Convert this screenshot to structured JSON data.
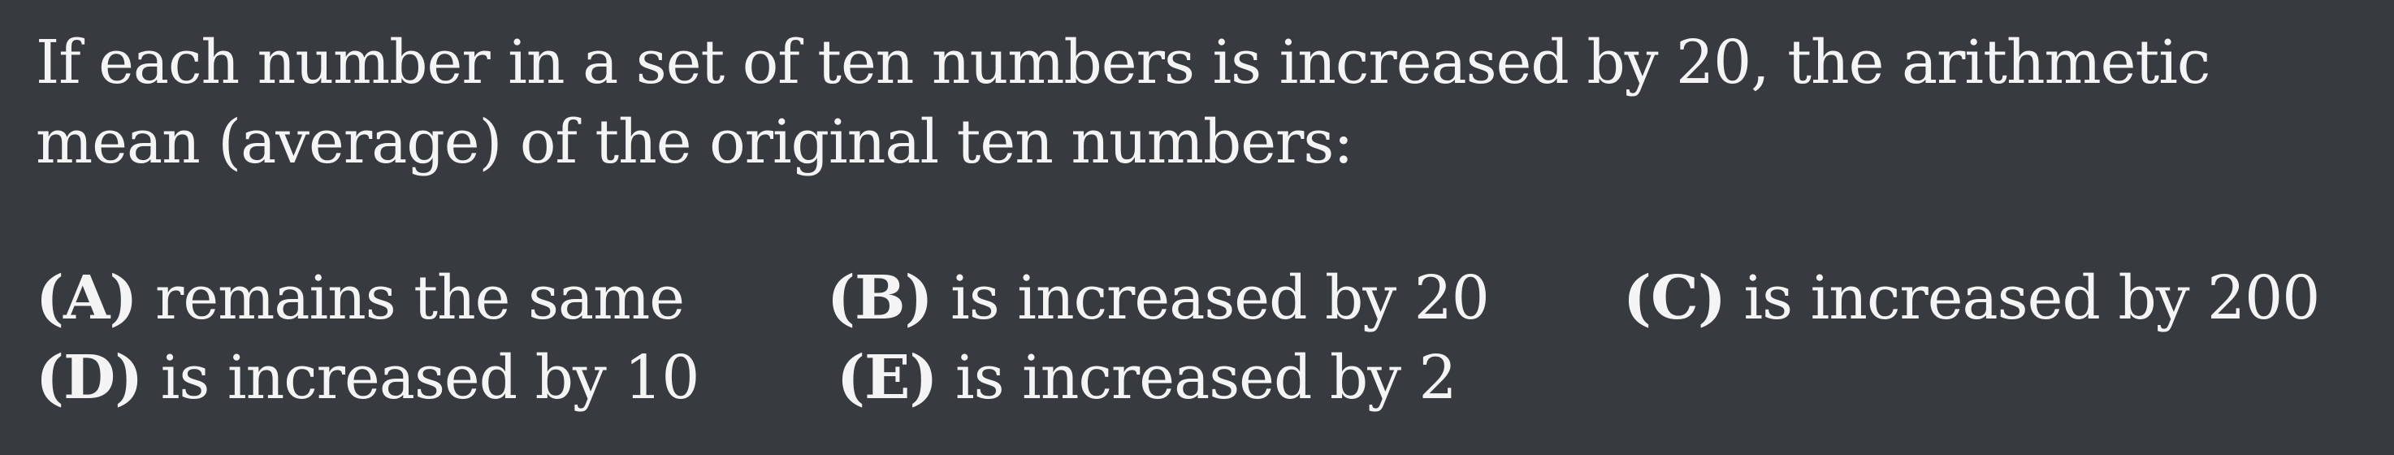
{
  "question": {
    "text": "If each number in a set of ten numbers is increased by 20, the arithmetic mean (average) of the original ten numbers:"
  },
  "choices": [
    {
      "label": "(A)",
      "text": "remains the same"
    },
    {
      "label": "(B)",
      "text": "is increased by 20"
    },
    {
      "label": "(C)",
      "text": "is increased by 200"
    },
    {
      "label": "(D)",
      "text": "is increased by 10"
    },
    {
      "label": "(E)",
      "text": "is increased by 2"
    }
  ]
}
